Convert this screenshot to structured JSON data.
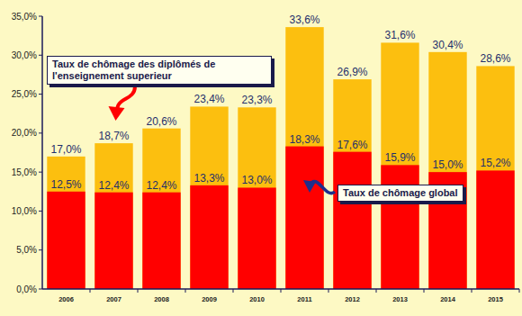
{
  "chart_data": {
    "type": "bar",
    "categories": [
      "2006",
      "2007",
      "2008",
      "2009",
      "2010",
      "2011",
      "2012",
      "2013",
      "2014",
      "2015"
    ],
    "series": [
      {
        "name": "Taux de chômage des diplômés de l'enseignement superieur",
        "color": "#fcbf0f",
        "values": [
          17.0,
          18.7,
          20.6,
          23.4,
          23.3,
          33.6,
          26.9,
          31.6,
          30.4,
          28.6
        ],
        "value_labels": [
          "17,0%",
          "18,7%",
          "20,6%",
          "23,4%",
          "23,3%",
          "33,6%",
          "26,9%",
          "31,6%",
          "30,4%",
          "28,6%"
        ]
      },
      {
        "name": "Taux de chômage global",
        "color": "#ff0000",
        "values": [
          12.5,
          12.4,
          12.4,
          13.3,
          13.0,
          18.3,
          17.6,
          15.9,
          15.0,
          15.2
        ],
        "value_labels": [
          "12,5%",
          "12,4%",
          "12,4%",
          "13,3%",
          "13,0%",
          "18,3%",
          "17,6%",
          "15,9%",
          "15,0%",
          "15,2%"
        ]
      }
    ],
    "ylim": [
      0,
      35
    ],
    "yticks": [
      {
        "value": 0,
        "label": "0,0%"
      },
      {
        "value": 5,
        "label": "5,0%"
      },
      {
        "value": 10,
        "label": "10,0%"
      },
      {
        "value": 15,
        "label": "15,0%"
      },
      {
        "value": 20,
        "label": "20,0%"
      },
      {
        "value": 25,
        "label": "25,0%"
      },
      {
        "value": 30,
        "label": "30,0%"
      },
      {
        "value": 35,
        "label": "35,0%"
      }
    ],
    "data_labels": true,
    "grid": false
  }
}
